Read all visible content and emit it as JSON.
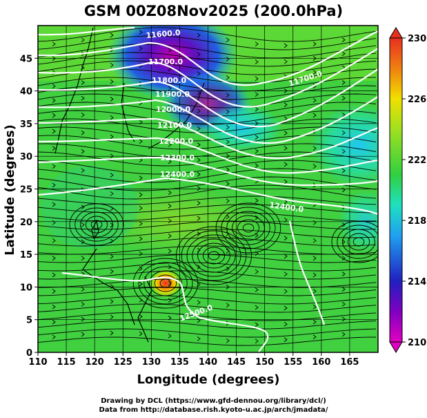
{
  "chart_data": {
    "type": "heatmap",
    "title": "GSM 00Z08Nov2025 (200.0hPa)",
    "xlabel": "Longitude (degrees)",
    "ylabel": "Latitude  (degrees)",
    "xlim": [
      110,
      170
    ],
    "ylim": [
      0,
      50
    ],
    "x_ticks": [
      110,
      115,
      120,
      125,
      130,
      135,
      140,
      145,
      150,
      155,
      160,
      165
    ],
    "y_ticks": [
      0,
      5,
      10,
      15,
      20,
      25,
      30,
      35,
      40,
      45
    ],
    "grid": true,
    "colorbar": {
      "range": [
        210,
        230
      ],
      "ticks": [
        210,
        214,
        218,
        222,
        226,
        230
      ],
      "colors": {
        "low": "#e000c0",
        "c214": "#2030c0",
        "c218": "#20c8f0",
        "c222": "#30d040",
        "c226": "#f0e000",
        "high": "#e83020"
      }
    },
    "contours": [
      {
        "value": 11600,
        "label": "11600.0"
      },
      {
        "value": 11700,
        "label": "11700.0"
      },
      {
        "value": 11800,
        "label": "11800.0"
      },
      {
        "value": 11900,
        "label": "11900.0"
      },
      {
        "value": 12000,
        "label": "12000.0"
      },
      {
        "value": 12100,
        "label": "12100.0"
      },
      {
        "value": 12200,
        "label": "12200.0"
      },
      {
        "value": 12300,
        "label": "12300.0"
      },
      {
        "value": 12400,
        "label": "12400.0"
      },
      {
        "value": 12500,
        "label": "12500.0"
      }
    ],
    "contour_color": "#ffffff",
    "streamline_color": "#000000",
    "coastline_color": "#000000"
  },
  "credits": {
    "line1": "Drawing by DCL (https://www.gfd-dennou.org/library/dcl/)",
    "line2": "Data from http://database.rish.kyoto-u.ac.jp/arch/jmadata/"
  }
}
